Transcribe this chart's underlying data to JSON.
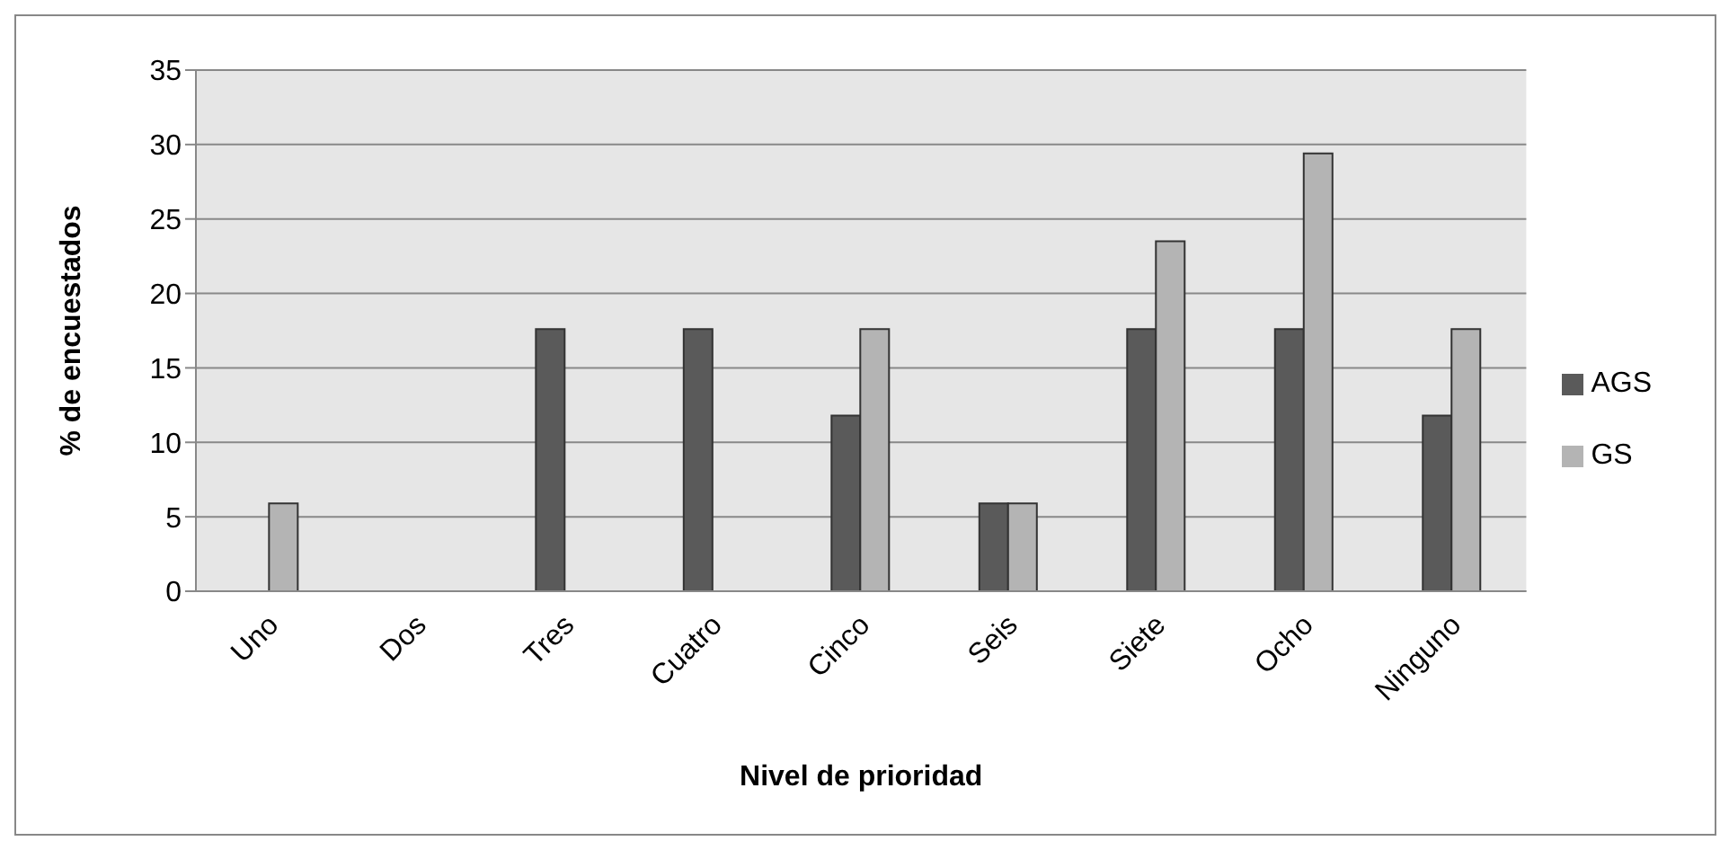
{
  "chart_data": {
    "type": "bar",
    "xlabel": "Nivel de prioridad",
    "ylabel": "% de encuestados",
    "categories": [
      "Uno",
      "Dos",
      "Tres",
      "Cuatro",
      "Cinco",
      "Seis",
      "Siete",
      "Ocho",
      "Ninguno"
    ],
    "series": [
      {
        "name": "AGS",
        "color": "#5a5a5a",
        "values": [
          0,
          0,
          17.6,
          17.6,
          11.8,
          5.9,
          17.6,
          17.6,
          11.8
        ]
      },
      {
        "name": "GS",
        "color": "#b4b4b4",
        "values": [
          5.9,
          0,
          0,
          0,
          17.6,
          5.9,
          23.5,
          29.4,
          17.6
        ]
      }
    ],
    "ylim": [
      0,
      35
    ],
    "yticks": [
      0,
      5,
      10,
      15,
      20,
      25,
      30,
      35
    ],
    "grid": "y",
    "legend": "right"
  }
}
